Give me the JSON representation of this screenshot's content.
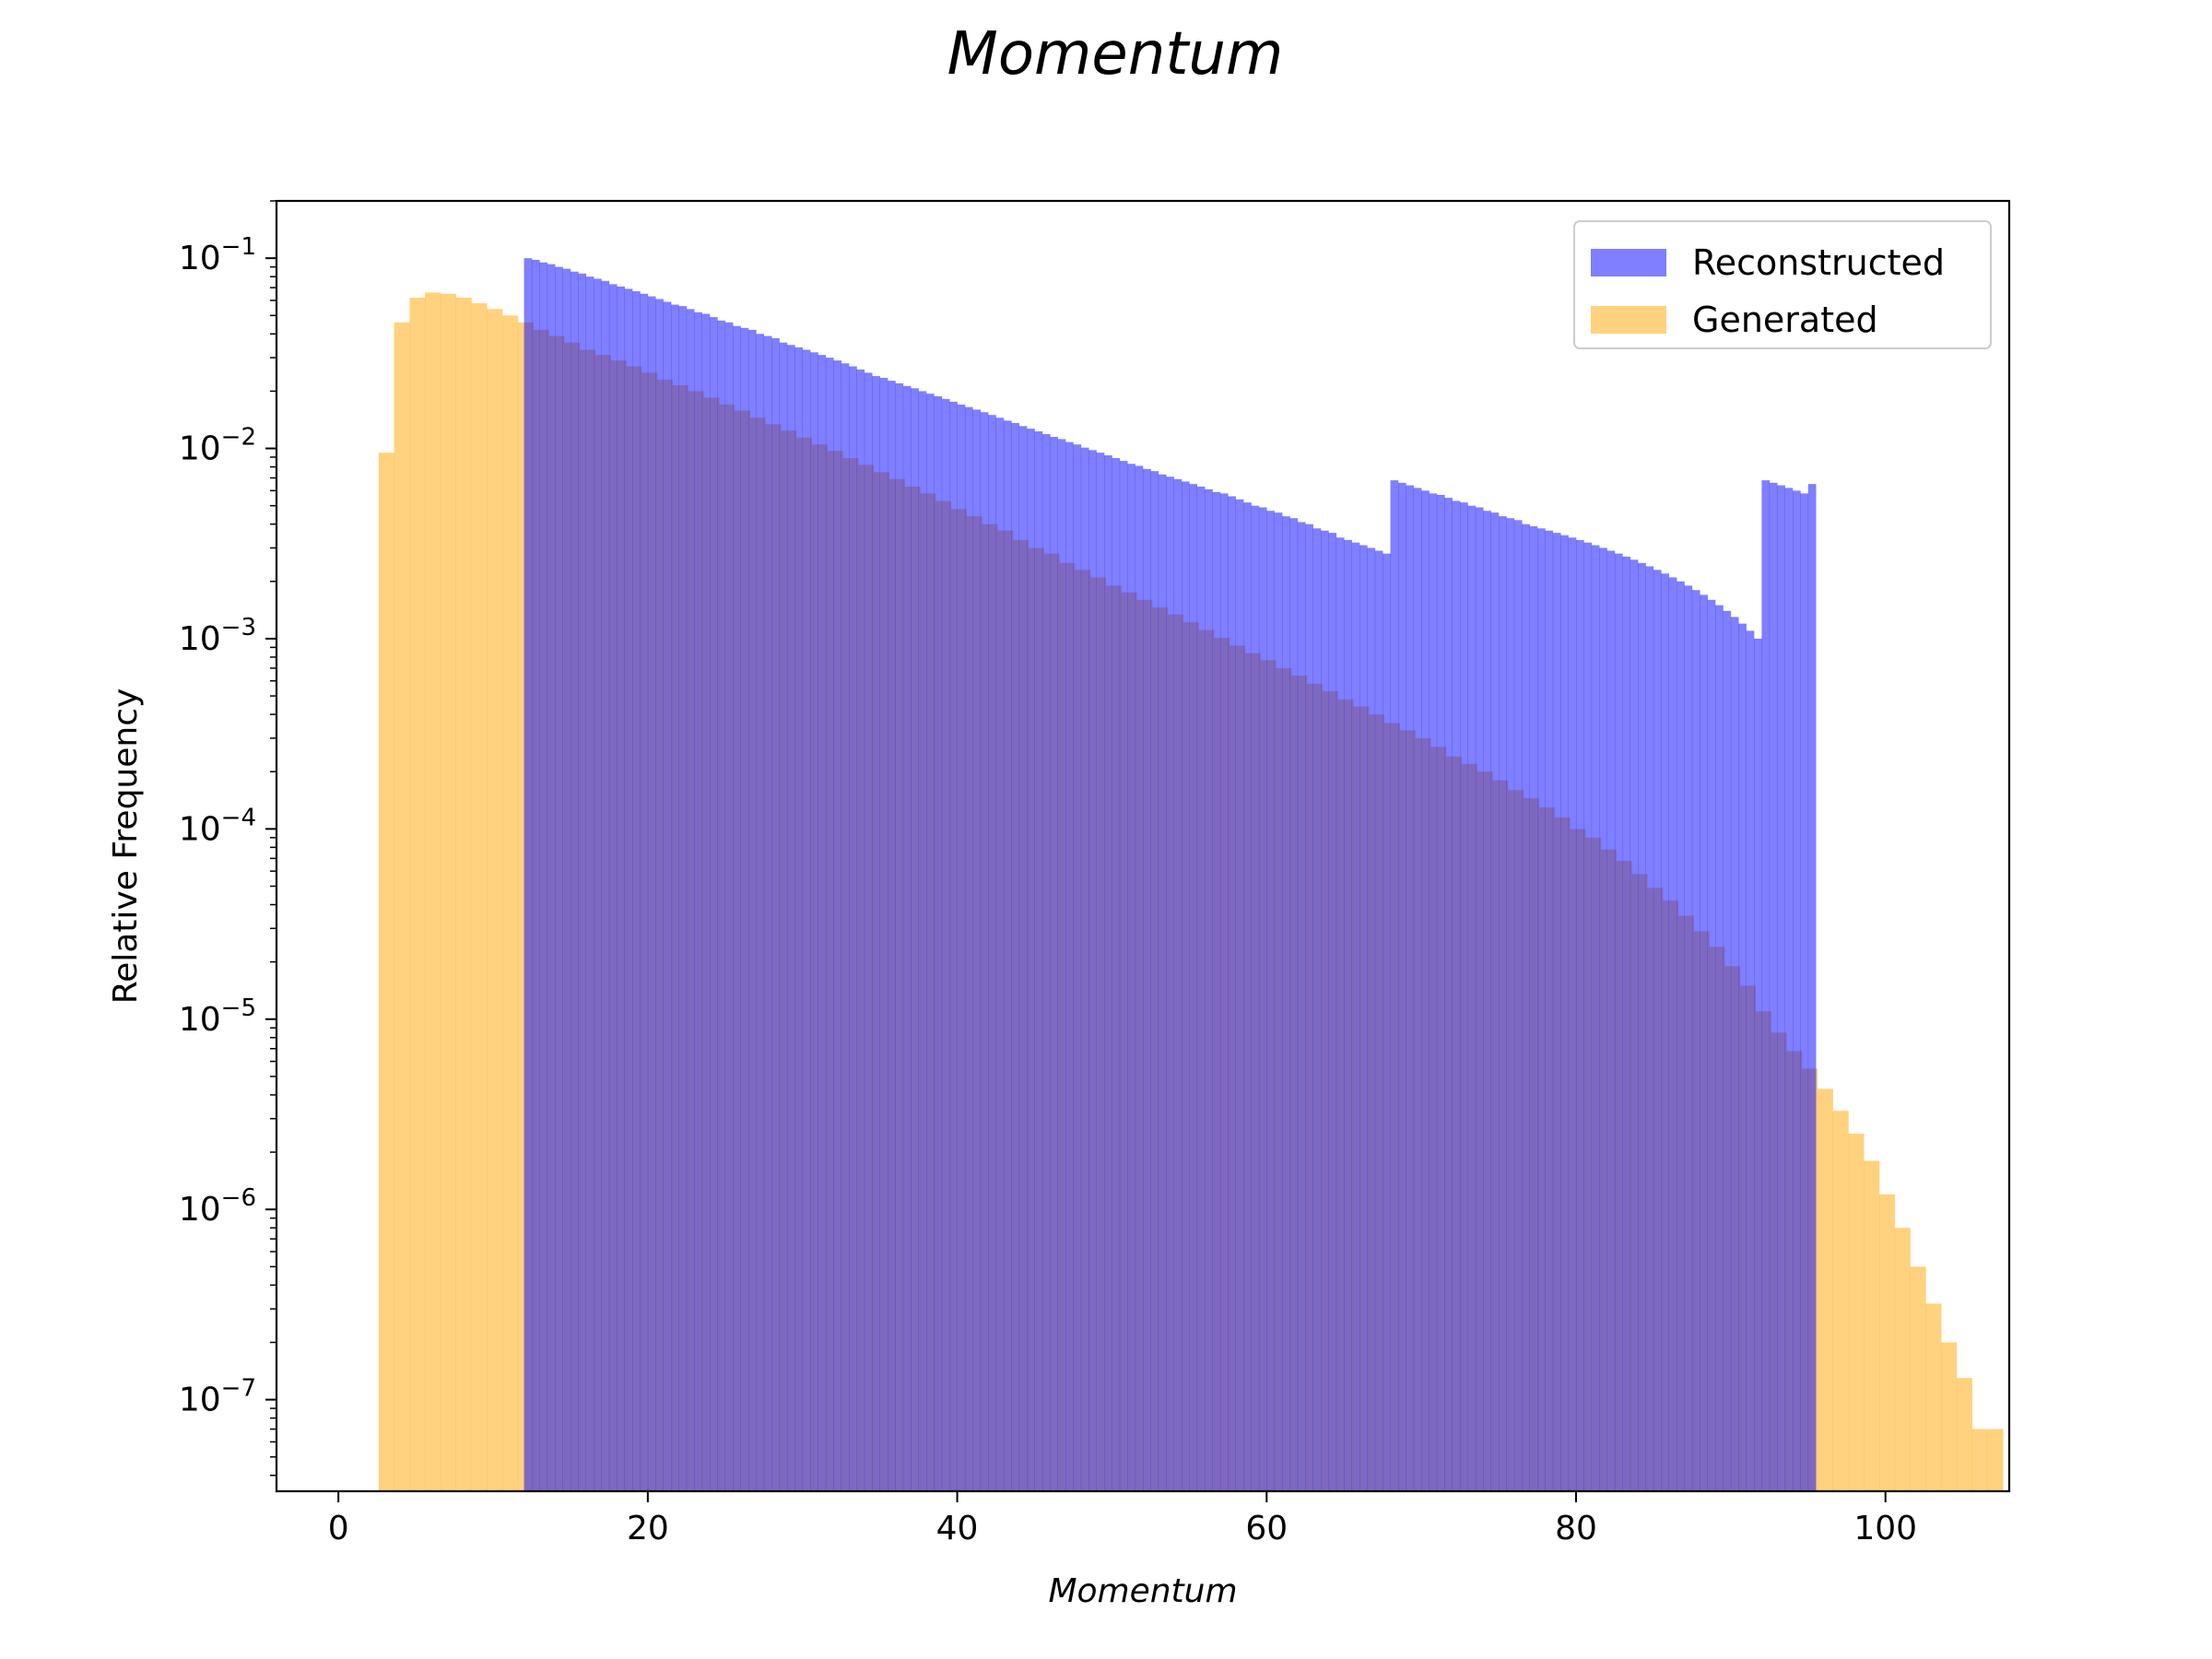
{
  "chart_data": {
    "type": "bar",
    "title": "Momentum",
    "xlabel": "Momentum",
    "ylabel": "Relative Frequency",
    "y_scale": "log",
    "xlim": [
      -4,
      108
    ],
    "ylim": [
      3.3e-08,
      0.2
    ],
    "x_ticks": [
      0,
      20,
      40,
      60,
      80,
      100
    ],
    "x_tick_labels": [
      "0",
      "20",
      "40",
      "60",
      "80",
      "100"
    ],
    "y_ticks": [
      1e-07,
      1e-06,
      1e-05,
      0.0001,
      0.001,
      0.01,
      0.1
    ],
    "y_tick_labels": [
      {
        "base": "10",
        "exp": "−7"
      },
      {
        "base": "10",
        "exp": "−6"
      },
      {
        "base": "10",
        "exp": "−5"
      },
      {
        "base": "10",
        "exp": "−4"
      },
      {
        "base": "10",
        "exp": "−3"
      },
      {
        "base": "10",
        "exp": "−2"
      },
      {
        "base": "10",
        "exp": "−1"
      }
    ],
    "grid": false,
    "legend_position": "upper right",
    "series": [
      {
        "name": "Reconstructed",
        "color": "#0000ff",
        "alpha": 0.5,
        "bin_start": 12,
        "bin_width": 0.5,
        "values": [
          0.1,
          0.098,
          0.095,
          0.093,
          0.09,
          0.088,
          0.085,
          0.083,
          0.08,
          0.078,
          0.076,
          0.073,
          0.071,
          0.069,
          0.067,
          0.065,
          0.063,
          0.061,
          0.059,
          0.057,
          0.056,
          0.054,
          0.052,
          0.051,
          0.049,
          0.047,
          0.046,
          0.044,
          0.043,
          0.042,
          0.04,
          0.039,
          0.038,
          0.036,
          0.035,
          0.034,
          0.033,
          0.032,
          0.031,
          0.03,
          0.029,
          0.028,
          0.027,
          0.026,
          0.025,
          0.024,
          0.0235,
          0.0227,
          0.022,
          0.0213,
          0.0207,
          0.02,
          0.0194,
          0.0188,
          0.0182,
          0.0176,
          0.017,
          0.0165,
          0.016,
          0.0155,
          0.015,
          0.0145,
          0.014,
          0.0136,
          0.0131,
          0.0127,
          0.0123,
          0.0119,
          0.0115,
          0.0112,
          0.0108,
          0.0105,
          0.0101,
          0.0098,
          0.0095,
          0.0092,
          0.0089,
          0.0086,
          0.0083,
          0.0081,
          0.0078,
          0.0076,
          0.0073,
          0.0071,
          0.0069,
          0.0067,
          0.0065,
          0.0063,
          0.0061,
          0.0059,
          0.0058,
          0.0056,
          0.0054,
          0.0052,
          0.005,
          0.0049,
          0.0047,
          0.0046,
          0.0044,
          0.0043,
          0.0041,
          0.004,
          0.0038,
          0.0037,
          0.0036,
          0.0034,
          0.0033,
          0.0032,
          0.0031,
          0.003,
          0.0029,
          0.0028,
          0.0068,
          0.0066,
          0.0064,
          0.0062,
          0.006,
          0.0058,
          0.0057,
          0.0055,
          0.0053,
          0.0052,
          0.005,
          0.0049,
          0.0047,
          0.0046,
          0.0044,
          0.0043,
          0.0042,
          0.004,
          0.0039,
          0.0038,
          0.0037,
          0.0036,
          0.0035,
          0.0034,
          0.0033,
          0.0032,
          0.0031,
          0.003,
          0.0029,
          0.0028,
          0.0027,
          0.0026,
          0.0025,
          0.0024,
          0.0023,
          0.0022,
          0.0021,
          0.002,
          0.0019,
          0.0018,
          0.0017,
          0.0016,
          0.0015,
          0.0014,
          0.0013,
          0.0012,
          0.0011,
          0.001,
          0.0068,
          0.0066,
          0.0064,
          0.0062,
          0.006,
          0.0058,
          0.0065
        ]
      },
      {
        "name": "Generated",
        "color": "#ffa500",
        "alpha": 0.5,
        "bin_start": 2.6,
        "bin_width": 1.0,
        "values": [
          0.0095,
          0.046,
          0.062,
          0.066,
          0.065,
          0.062,
          0.058,
          0.054,
          0.05,
          0.046,
          0.042,
          0.039,
          0.036,
          0.033,
          0.031,
          0.029,
          0.027,
          0.025,
          0.023,
          0.0215,
          0.02,
          0.0185,
          0.017,
          0.0158,
          0.0145,
          0.0134,
          0.0124,
          0.0114,
          0.0105,
          0.0097,
          0.0089,
          0.0082,
          0.0075,
          0.0069,
          0.0063,
          0.0058,
          0.0053,
          0.0048,
          0.0044,
          0.004,
          0.0037,
          0.0033,
          0.003,
          0.0028,
          0.0025,
          0.0023,
          0.0021,
          0.0019,
          0.00175,
          0.0016,
          0.00146,
          0.00134,
          0.00122,
          0.00111,
          0.00101,
          0.00092,
          0.00084,
          0.00077,
          0.0007,
          0.00064,
          0.00058,
          0.00053,
          0.00048,
          0.00044,
          0.0004,
          0.00036,
          0.00033,
          0.0003,
          0.00027,
          0.00024,
          0.00022,
          0.0002,
          0.00018,
          0.00016,
          0.000145,
          0.00013,
          0.000115,
          0.0001,
          9e-05,
          7.8e-05,
          6.8e-05,
          5.8e-05,
          4.9e-05,
          4.2e-05,
          3.5e-05,
          2.9e-05,
          2.4e-05,
          1.9e-05,
          1.5e-05,
          1.1e-05,
          8.5e-06,
          6.8e-06,
          5.5e-06,
          4.3e-06,
          3.3e-06,
          2.5e-06,
          1.8e-06,
          1.2e-06,
          8e-07,
          5e-07,
          3.2e-07,
          2e-07,
          1.3e-07,
          7e-08,
          7e-08
        ]
      }
    ]
  }
}
